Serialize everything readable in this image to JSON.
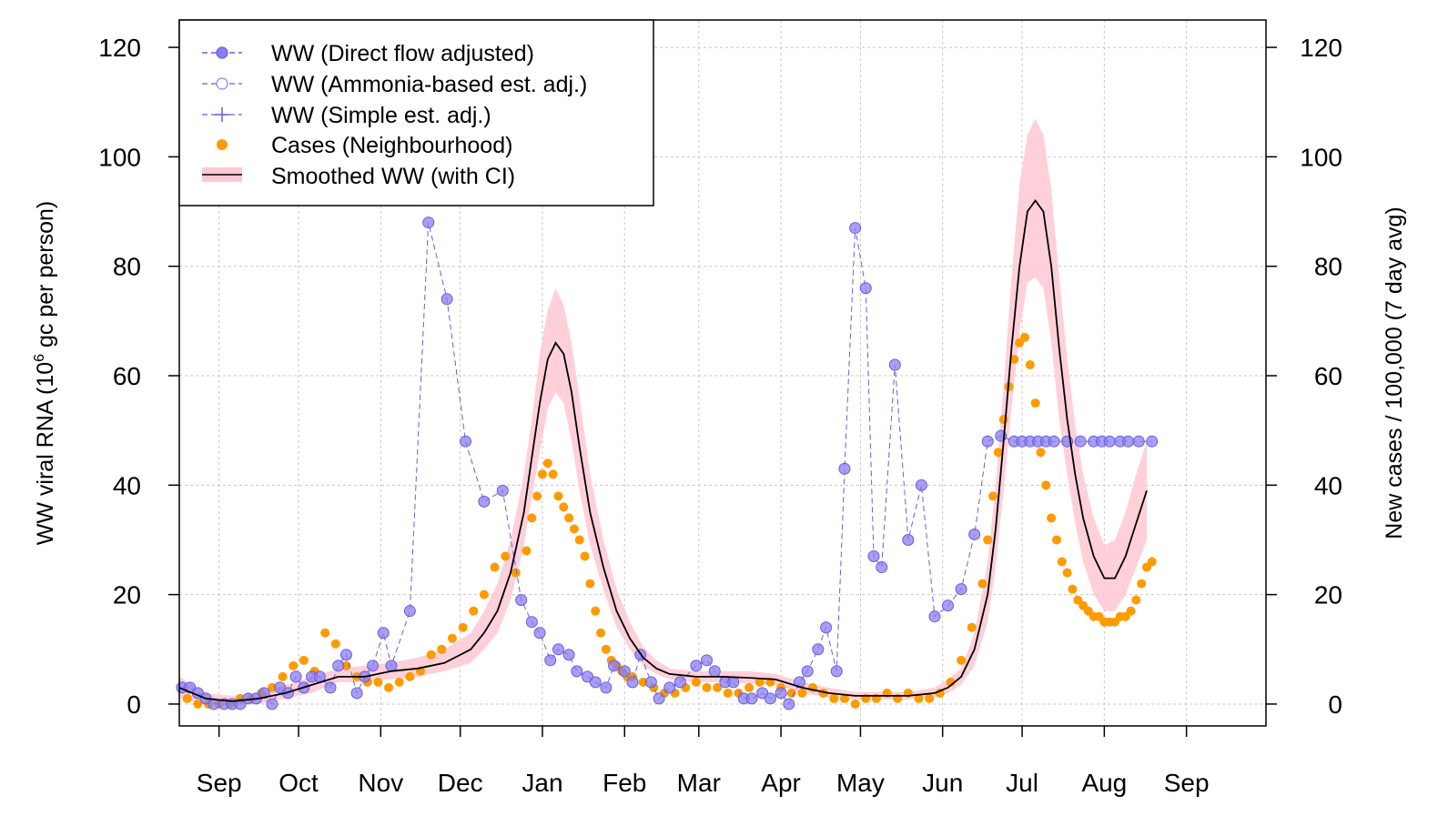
{
  "chart_data": {
    "type": "line",
    "title": "",
    "xlabel": "",
    "ylabel_left_parts": [
      "WW viral RNA (10",
      "6",
      " gc per person)"
    ],
    "ylabel_right": "New cases / 100,000 (7 day avg)",
    "ylim": [
      -4,
      125
    ],
    "yticks_left": [
      "0",
      "20",
      "40",
      "60",
      "80",
      "100",
      "120"
    ],
    "yticks_right": [
      "0",
      "20",
      "40",
      "60",
      "80",
      "100",
      "120"
    ],
    "x_domain_days": [
      -15,
      395
    ],
    "x_ticks": [
      {
        "label": "Sep",
        "day": 0
      },
      {
        "label": "Oct",
        "day": 30
      },
      {
        "label": "Nov",
        "day": 61
      },
      {
        "label": "Dec",
        "day": 91
      },
      {
        "label": "Jan",
        "day": 122
      },
      {
        "label": "Feb",
        "day": 153
      },
      {
        "label": "Mar",
        "day": 181
      },
      {
        "label": "Apr",
        "day": 212
      },
      {
        "label": "May",
        "day": 242
      },
      {
        "label": "Jun",
        "day": 273
      },
      {
        "label": "Jul",
        "day": 303
      },
      {
        "label": "Aug",
        "day": 334
      },
      {
        "label": "Sep",
        "day": 365
      }
    ],
    "grid": true,
    "legend_position": "top-left",
    "legend": [
      {
        "label": "WW (Direct flow adjusted)",
        "key": "direct"
      },
      {
        "label": "WW (Ammonia-based est. adj.)",
        "key": "ammonia"
      },
      {
        "label": "WW (Simple est. adj.)",
        "key": "simple"
      },
      {
        "label": "Cases (Neighbourhood)",
        "key": "cases"
      },
      {
        "label": "Smoothed WW (with CI)",
        "key": "smooth"
      }
    ],
    "colors": {
      "ww": "#6a5ce0",
      "ww_fill": "#8a7ff0",
      "cases": "#ff9a00",
      "smooth": "#000000",
      "ci": "#ffc8d2",
      "grid": "#c8c8c8"
    },
    "series": [
      {
        "name": "WW (Direct flow adjusted)",
        "x": [
          -14,
          -11,
          -8,
          -5,
          -2,
          2,
          5,
          8,
          11,
          14,
          17,
          20,
          23,
          26,
          29,
          32,
          35,
          38,
          42,
          45,
          48,
          52,
          55,
          58,
          62,
          65,
          72,
          79,
          86,
          93,
          100,
          107,
          114,
          118,
          121,
          125,
          128,
          132,
          135,
          139,
          142,
          146,
          149,
          153,
          156,
          159,
          163,
          166,
          170,
          174,
          180,
          184,
          187,
          191,
          194,
          198,
          201,
          205,
          208,
          212,
          215,
          219,
          222,
          226,
          229,
          233,
          236,
          240,
          244,
          247,
          250,
          255,
          260,
          265,
          270,
          275,
          280,
          285,
          290,
          295,
          300,
          303,
          306,
          309,
          312,
          315,
          320,
          325,
          330,
          333,
          336,
          340,
          343,
          347,
          352
        ],
        "y": [
          3,
          3,
          2,
          1,
          0,
          0,
          0,
          0,
          1,
          1,
          2,
          0,
          3,
          2,
          5,
          3,
          5,
          5,
          3,
          7,
          9,
          2,
          5,
          7,
          13,
          7,
          17,
          88,
          74,
          48,
          37,
          39,
          19,
          15,
          13,
          8,
          10,
          9,
          6,
          5,
          4,
          3,
          7,
          6,
          4,
          9,
          4,
          1,
          3,
          4,
          7,
          8,
          6,
          4,
          4,
          1,
          1,
          2,
          1,
          2,
          0,
          4,
          6,
          10,
          14,
          6,
          43,
          87,
          76,
          27,
          25,
          62,
          30,
          40,
          16,
          18,
          21,
          31,
          48,
          49,
          48,
          48,
          48,
          48,
          48,
          48,
          48,
          48,
          48,
          48,
          48,
          48,
          48,
          48,
          48
        ],
        "note": "values read off left axis"
      },
      {
        "name": "Cases (Neighbourhood)",
        "x": [
          -12,
          -8,
          -4,
          0,
          4,
          8,
          12,
          16,
          20,
          24,
          28,
          32,
          36,
          40,
          44,
          48,
          52,
          56,
          60,
          64,
          68,
          72,
          76,
          80,
          84,
          88,
          92,
          96,
          100,
          104,
          108,
          112,
          116,
          118,
          120,
          122,
          124,
          126,
          128,
          130,
          132,
          134,
          136,
          138,
          140,
          142,
          144,
          146,
          148,
          150,
          152,
          154,
          156,
          160,
          164,
          168,
          172,
          176,
          180,
          184,
          188,
          192,
          196,
          200,
          204,
          208,
          212,
          216,
          220,
          224,
          228,
          232,
          236,
          240,
          244,
          248,
          252,
          256,
          260,
          264,
          268,
          272,
          276,
          280,
          284,
          288,
          290,
          292,
          294,
          296,
          298,
          300,
          302,
          304,
          306,
          308,
          310,
          312,
          314,
          316,
          318,
          320,
          322,
          324,
          326,
          328,
          330,
          332,
          334,
          336,
          338,
          340,
          342,
          344,
          346,
          348,
          350,
          352
        ],
        "y": [
          1,
          0,
          0,
          0,
          0,
          1,
          1,
          2,
          3,
          5,
          7,
          8,
          6,
          13,
          11,
          7,
          5,
          4,
          4,
          3,
          4,
          5,
          6,
          9,
          10,
          12,
          14,
          17,
          20,
          25,
          27,
          24,
          28,
          34,
          38,
          42,
          44,
          42,
          38,
          36,
          34,
          32,
          30,
          27,
          22,
          17,
          13,
          10,
          8,
          7,
          6,
          5,
          5,
          4,
          3,
          2,
          2,
          3,
          4,
          3,
          3,
          2,
          2,
          3,
          4,
          4,
          3,
          2,
          2,
          3,
          2,
          1,
          1,
          0,
          1,
          1,
          2,
          1,
          2,
          1,
          1,
          2,
          4,
          8,
          14,
          22,
          30,
          38,
          46,
          52,
          58,
          63,
          66,
          67,
          62,
          55,
          46,
          40,
          34,
          30,
          26,
          24,
          21,
          19,
          18,
          17,
          16,
          16,
          15,
          15,
          15,
          16,
          16,
          17,
          19,
          22,
          25,
          26
        ],
        "note": "values read off right axis"
      },
      {
        "name": "Smoothed WW (with CI)",
        "x": [
          -15,
          -5,
          5,
          15,
          25,
          35,
          45,
          55,
          65,
          75,
          85,
          95,
          100,
          105,
          110,
          115,
          118,
          121,
          124,
          127,
          130,
          133,
          136,
          140,
          145,
          150,
          155,
          160,
          165,
          170,
          180,
          190,
          200,
          210,
          220,
          230,
          240,
          250,
          260,
          270,
          275,
          280,
          285,
          290,
          293,
          296,
          299,
          302,
          305,
          308,
          311,
          314,
          317,
          320,
          323,
          326,
          330,
          334,
          338,
          342,
          346,
          350
        ],
        "y": [
          3,
          1,
          0.5,
          1,
          2,
          3.5,
          5,
          5,
          6,
          6.5,
          7.5,
          10,
          13,
          17,
          24,
          35,
          45,
          55,
          63,
          66,
          64,
          57,
          47,
          35,
          25,
          17,
          12,
          8.5,
          6.5,
          5.5,
          5,
          5,
          4.8,
          4.5,
          3,
          2,
          1.5,
          1.5,
          1.5,
          2,
          3,
          5,
          10,
          20,
          32,
          48,
          65,
          80,
          90,
          92,
          90,
          80,
          65,
          52,
          42,
          34,
          27,
          23,
          23,
          27,
          33,
          39
        ],
        "ci_lower": [
          1,
          0,
          0,
          0,
          1,
          2,
          4,
          4,
          4.5,
          5,
          6,
          7.5,
          10,
          13,
          19,
          29,
          38,
          46,
          54,
          57,
          55,
          48,
          39,
          29,
          21,
          14,
          10,
          7,
          5.5,
          4.5,
          4,
          4,
          3.8,
          3.5,
          2,
          1.2,
          0.8,
          0.8,
          0.8,
          1.2,
          2,
          3.5,
          7,
          15,
          25,
          39,
          54,
          68,
          77,
          78,
          76,
          66,
          52,
          42,
          33,
          26,
          20,
          17,
          17,
          20,
          25,
          30
        ],
        "ci_upper": [
          5,
          2,
          1.5,
          2,
          3.5,
          5,
          6.5,
          7,
          7.5,
          8.5,
          10,
          13,
          17,
          22,
          30,
          42,
          52,
          64,
          72,
          76,
          73,
          66,
          56,
          42,
          30,
          21,
          15,
          10.5,
          8,
          6.5,
          6,
          6,
          6,
          5.5,
          4,
          3,
          2.2,
          2.2,
          2.2,
          3,
          4.5,
          6.5,
          13,
          26,
          40,
          58,
          78,
          95,
          104,
          107,
          104,
          94,
          78,
          63,
          51,
          42,
          34,
          29,
          30,
          35,
          42,
          48
        ]
      }
    ]
  }
}
